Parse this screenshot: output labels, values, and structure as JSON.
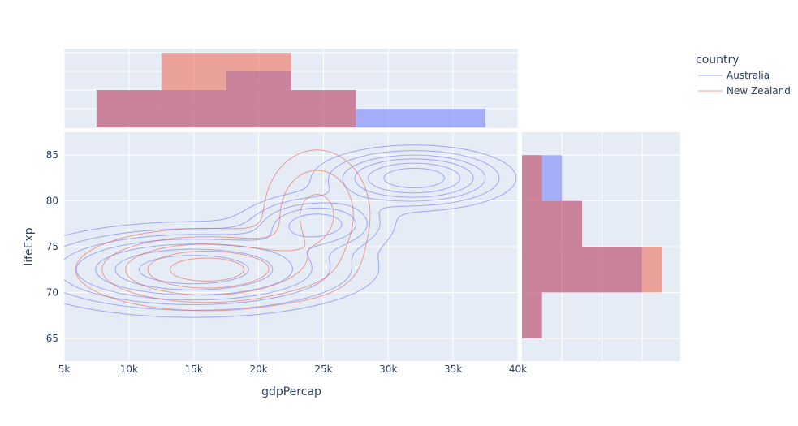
{
  "chart_data": {
    "type": "scatter",
    "subtype": "density-contour with marginal histograms",
    "xlabel": "gdpPercap",
    "ylabel": "lifeExp",
    "xlim": [
      5000,
      40000
    ],
    "ylim": [
      62.5,
      87.5
    ],
    "x_ticks": [
      {
        "value": 5000,
        "label": "5k"
      },
      {
        "value": 10000,
        "label": "10k"
      },
      {
        "value": 15000,
        "label": "15k"
      },
      {
        "value": 20000,
        "label": "20k"
      },
      {
        "value": 25000,
        "label": "25k"
      },
      {
        "value": 30000,
        "label": "30k"
      },
      {
        "value": 35000,
        "label": "35k"
      },
      {
        "value": 40000,
        "label": "40k"
      }
    ],
    "y_ticks": [
      {
        "value": 65,
        "label": "65"
      },
      {
        "value": 70,
        "label": "70"
      },
      {
        "value": 75,
        "label": "75"
      },
      {
        "value": 80,
        "label": "80"
      },
      {
        "value": 85,
        "label": "85"
      }
    ],
    "legend": {
      "title": "country",
      "entries": [
        "Australia",
        "New Zealand"
      ],
      "placement": "top-right"
    },
    "colors": {
      "Australia": "#636efa",
      "New Zealand": "#ef553b",
      "plot_bg": "#e5ecf6",
      "grid": "#ffffff",
      "text": "#2a3f5f"
    },
    "series": [
      {
        "name": "Australia",
        "contour_peaks": [
          {
            "x": 15000,
            "y": 72.5,
            "sx": 6000,
            "sy": 2.2,
            "w": 1.0
          },
          {
            "x": 24500,
            "y": 77.5,
            "sx": 2800,
            "sy": 1.6,
            "w": 0.55
          },
          {
            "x": 32000,
            "y": 82.5,
            "sx": 3500,
            "sy": 1.6,
            "w": 0.75
          }
        ],
        "contour_levels": [
          0.06,
          0.13,
          0.22,
          0.32,
          0.45,
          0.6,
          0.78
        ],
        "x_histogram": {
          "bins": [
            [
              7500,
              12500,
              2
            ],
            [
              12500,
              17500,
              2
            ],
            [
              17500,
              22500,
              3
            ],
            [
              22500,
              27500,
              2
            ],
            [
              27500,
              32500,
              1
            ],
            [
              32500,
              37500,
              1
            ]
          ]
        },
        "y_histogram": {
          "bins": [
            [
              65,
              70,
              1
            ],
            [
              70,
              75,
              6
            ],
            [
              75,
              80,
              3
            ],
            [
              80,
              85,
              2
            ]
          ]
        }
      },
      {
        "name": "New Zealand",
        "contour_peaks": [
          {
            "x": 16000,
            "y": 72.5,
            "sx": 4500,
            "sy": 2.0,
            "w": 1.0
          },
          {
            "x": 24500,
            "y": 78.5,
            "sx": 2200,
            "sy": 3.8,
            "w": 0.45
          }
        ],
        "contour_levels": [
          0.08,
          0.2,
          0.38,
          0.6,
          0.82
        ],
        "x_histogram": {
          "bins": [
            [
              7500,
              12500,
              2
            ],
            [
              12500,
              17500,
              4
            ],
            [
              17500,
              22500,
              4
            ],
            [
              22500,
              27500,
              2
            ]
          ]
        },
        "y_histogram": {
          "bins": [
            [
              65,
              70,
              1
            ],
            [
              70,
              75,
              7
            ],
            [
              75,
              80,
              3
            ],
            [
              80,
              85,
              1
            ]
          ]
        }
      }
    ],
    "x_hist_max": 4,
    "y_hist_max": 7.5
  }
}
